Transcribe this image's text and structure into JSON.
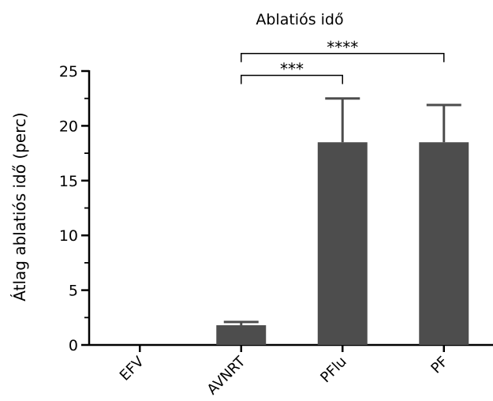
{
  "chart_data": {
    "type": "bar",
    "title": "Ablatiós idő",
    "xlabel": "",
    "ylabel": "Átlag ablatiós idő (perc)",
    "ylim": [
      0,
      25
    ],
    "yticks": [
      0,
      5,
      10,
      15,
      20,
      25
    ],
    "grid": false,
    "categories": [
      "EFV",
      "AVNRT",
      "PFlu",
      "PF"
    ],
    "values": [
      0,
      1.8,
      18.5,
      18.5
    ],
    "error_upper": [
      0,
      2.1,
      22.5,
      21.9
    ],
    "significance": [
      {
        "from": "AVNRT",
        "to": "PFlu",
        "label": "***"
      },
      {
        "from": "AVNRT",
        "to": "PF",
        "label": "****"
      }
    ],
    "bar_color": "#4d4d4d"
  }
}
